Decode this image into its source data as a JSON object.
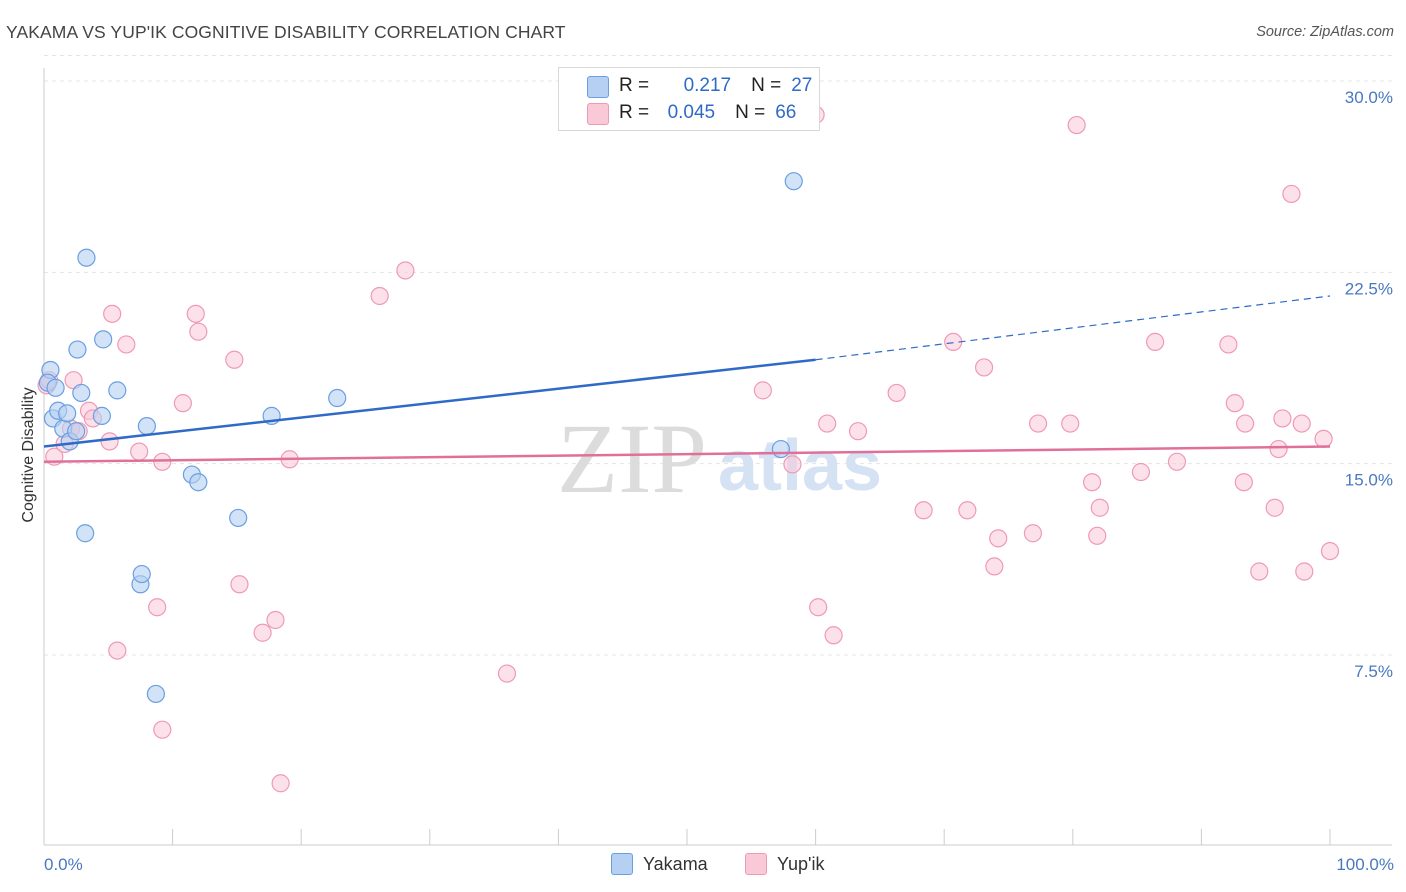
{
  "title": "YAKAMA VS YUP'IK COGNITIVE DISABILITY CORRELATION CHART",
  "source": "Source: ZipAtlas.com",
  "colors": {
    "yakama_fill": "#b5d0f2",
    "yakama_stroke": "#6a9fe0",
    "yakama_line": "#2f6bc6",
    "yupik_fill": "#f9c9d8",
    "yupik_stroke": "#ef9ab5",
    "yupik_line": "#e0709a",
    "tick_label": "#4a78c0",
    "grid": "#e4e4e4"
  },
  "legend": {
    "rows": [
      {
        "r_label": "R =",
        "r_value": "0.217",
        "n_label": "N =",
        "n_value": "27"
      },
      {
        "r_label": "R =",
        "r_value": "0.045",
        "n_label": "N =",
        "n_value": "66"
      }
    ]
  },
  "chart_data": {
    "type": "scatter",
    "title": "YAKAMA VS YUP'IK COGNITIVE DISABILITY CORRELATION CHART",
    "xlabel": "",
    "ylabel": "Cognitive Disability",
    "xlim": [
      0,
      100
    ],
    "ylim": [
      0,
      31
    ],
    "x_tick_labels": [
      "0.0%",
      "100.0%"
    ],
    "y_ticks": [
      7.5,
      15.0,
      22.5,
      30.0
    ],
    "y_tick_labels": [
      "7.5%",
      "15.0%",
      "22.5%",
      "30.0%"
    ],
    "grid": "horizontal dashed",
    "legend_position": "top-center",
    "watermark": {
      "zip": "ZIP",
      "atlas": "atlas"
    },
    "series": [
      {
        "name": "Yakama",
        "r": 0.217,
        "n": 27,
        "trend": {
          "x_solid": [
            0,
            60
          ],
          "y_solid": [
            16.3,
            19.7
          ],
          "x_dashed": [
            60,
            100
          ],
          "y_dashed": [
            19.7,
            22.2
          ]
        },
        "points": [
          [
            0.5,
            19.3
          ],
          [
            0.7,
            17.4
          ],
          [
            1.1,
            17.7
          ],
          [
            1.5,
            17.0
          ],
          [
            1.8,
            17.6
          ],
          [
            2.0,
            16.5
          ],
          [
            2.5,
            16.9
          ],
          [
            2.6,
            20.1
          ],
          [
            2.9,
            18.4
          ],
          [
            3.2,
            12.9
          ],
          [
            3.3,
            23.7
          ],
          [
            4.5,
            17.5
          ],
          [
            5.7,
            18.5
          ],
          [
            4.6,
            20.5
          ],
          [
            7.5,
            10.9
          ],
          [
            7.6,
            11.3
          ],
          [
            8.0,
            17.1
          ],
          [
            8.7,
            6.6
          ],
          [
            11.5,
            15.2
          ],
          [
            12.0,
            14.9
          ],
          [
            15.1,
            13.5
          ],
          [
            17.7,
            17.5
          ],
          [
            22.8,
            18.2
          ],
          [
            57.3,
            16.2
          ],
          [
            58.3,
            26.7
          ],
          [
            0.3,
            18.8
          ],
          [
            0.9,
            18.6
          ]
        ]
      },
      {
        "name": "Yup'ik",
        "r": 0.045,
        "n": 66,
        "trend": {
          "x": [
            0,
            100
          ],
          "y": [
            15.7,
            16.3
          ]
        },
        "points": [
          [
            0.2,
            18.7
          ],
          [
            0.8,
            15.9
          ],
          [
            1.6,
            16.4
          ],
          [
            2.1,
            17.0
          ],
          [
            2.3,
            18.9
          ],
          [
            2.7,
            16.9
          ],
          [
            3.5,
            17.7
          ],
          [
            3.8,
            17.4
          ],
          [
            5.1,
            16.5
          ],
          [
            5.3,
            21.5
          ],
          [
            5.7,
            8.3
          ],
          [
            6.4,
            20.3
          ],
          [
            7.4,
            16.1
          ],
          [
            8.8,
            10.0
          ],
          [
            9.2,
            15.7
          ],
          [
            9.2,
            5.2
          ],
          [
            10.8,
            18.0
          ],
          [
            11.8,
            21.5
          ],
          [
            12.0,
            20.8
          ],
          [
            14.8,
            19.7
          ],
          [
            15.2,
            10.9
          ],
          [
            17.0,
            9.0
          ],
          [
            18.0,
            9.5
          ],
          [
            18.4,
            3.1
          ],
          [
            19.1,
            15.8
          ],
          [
            26.1,
            22.2
          ],
          [
            28.1,
            23.2
          ],
          [
            36.0,
            7.4
          ],
          [
            55.9,
            18.5
          ],
          [
            58.2,
            15.6
          ],
          [
            60.0,
            29.3
          ],
          [
            60.2,
            10.0
          ],
          [
            60.9,
            17.2
          ],
          [
            61.4,
            8.9
          ],
          [
            63.3,
            16.9
          ],
          [
            66.3,
            18.4
          ],
          [
            68.4,
            13.8
          ],
          [
            70.7,
            20.4
          ],
          [
            71.8,
            13.8
          ],
          [
            73.1,
            19.4
          ],
          [
            73.9,
            11.6
          ],
          [
            74.2,
            12.7
          ],
          [
            76.9,
            12.9
          ],
          [
            77.3,
            17.2
          ],
          [
            79.8,
            17.2
          ],
          [
            80.3,
            28.9
          ],
          [
            81.5,
            14.9
          ],
          [
            81.9,
            12.8
          ],
          [
            82.1,
            13.9
          ],
          [
            85.3,
            15.3
          ],
          [
            86.4,
            20.4
          ],
          [
            88.1,
            15.7
          ],
          [
            92.1,
            20.3
          ],
          [
            92.6,
            18.0
          ],
          [
            93.3,
            14.9
          ],
          [
            93.4,
            17.2
          ],
          [
            94.5,
            11.4
          ],
          [
            95.7,
            13.9
          ],
          [
            96.0,
            16.2
          ],
          [
            96.3,
            17.4
          ],
          [
            97.0,
            26.2
          ],
          [
            97.8,
            17.2
          ],
          [
            98.0,
            11.4
          ],
          [
            99.5,
            16.6
          ],
          [
            100.0,
            12.2
          ],
          [
            0.4,
            18.9
          ]
        ]
      }
    ]
  },
  "bottom_legend": {
    "items": [
      {
        "label": "Yakama"
      },
      {
        "label": "Yup'ik"
      }
    ]
  }
}
